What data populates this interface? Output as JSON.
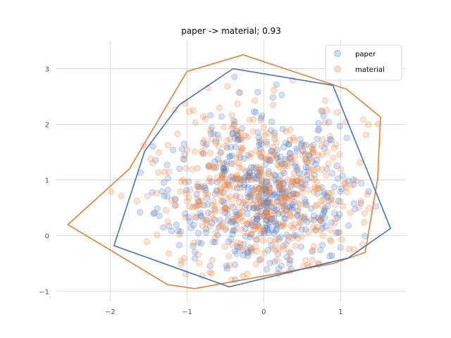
{
  "chart_data": {
    "type": "scatter",
    "title": "paper -> material; 0.93",
    "xlabel": "",
    "ylabel": "",
    "xlim": [
      -2.7,
      1.85
    ],
    "ylim": [
      -1.18,
      3.5
    ],
    "xticks": [
      -2,
      -1,
      0,
      1
    ],
    "yticks": [
      -1,
      0,
      1,
      2,
      3
    ],
    "grid": true,
    "legend_position": "top-right",
    "series": [
      {
        "name": "paper",
        "color": "#4472c4",
        "point_count": 500,
        "center": [
          0.0,
          0.72
        ],
        "spread": [
          0.62,
          0.75
        ],
        "seed": 17,
        "hull": [
          [
            0.9,
            2.7
          ],
          [
            1.65,
            0.13
          ],
          [
            1.1,
            -0.4
          ],
          [
            -0.45,
            -0.92
          ],
          [
            -1.95,
            -0.18
          ],
          [
            -1.55,
            1.52
          ],
          [
            -1.1,
            2.35
          ],
          [
            -0.4,
            3.0
          ]
        ]
      },
      {
        "name": "material",
        "color": "#ed7d31",
        "point_count": 500,
        "center": [
          -0.05,
          0.72
        ],
        "spread": [
          0.7,
          0.78
        ],
        "seed": 91,
        "hull": [
          [
            -0.27,
            3.25
          ],
          [
            1.08,
            2.63
          ],
          [
            1.52,
            2.13
          ],
          [
            1.48,
            1.0
          ],
          [
            1.32,
            -0.3
          ],
          [
            0.9,
            -0.5
          ],
          [
            -0.9,
            -0.95
          ],
          [
            -1.25,
            -0.88
          ],
          [
            -2.55,
            0.2
          ],
          [
            -1.75,
            1.2
          ],
          [
            -1.0,
            2.95
          ]
        ]
      }
    ]
  }
}
